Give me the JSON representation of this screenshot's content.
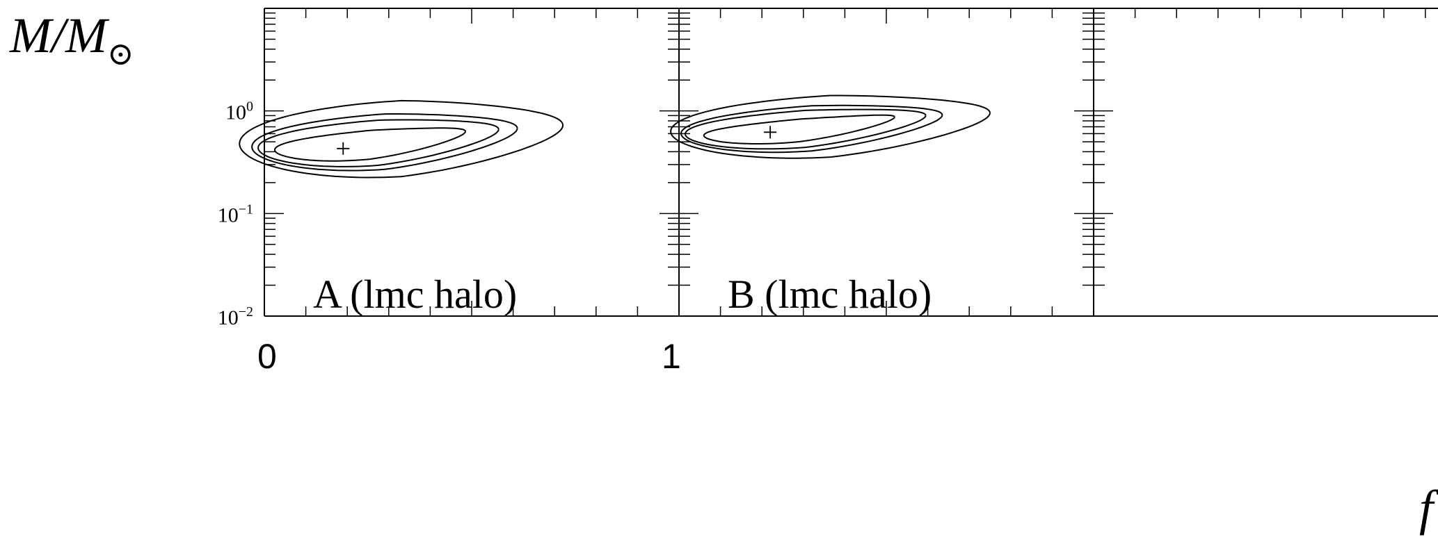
{
  "y_axis_title": {
    "main": "M/M",
    "subscript_symbol": "⊙"
  },
  "x_axis_title": "f",
  "outer_x_ticks": [
    "0",
    "1"
  ],
  "chart_data": {
    "type": "contour",
    "y_scale": "log",
    "ylim": [
      0.01,
      10
    ],
    "y_tick_labels": [
      {
        "value": 1,
        "base": "10",
        "exp": "0"
      },
      {
        "value": 0.1,
        "base": "10",
        "exp": "−1"
      },
      {
        "value": 0.01,
        "base": "10",
        "exp": "−2"
      }
    ],
    "panels": [
      {
        "label": "A (lmc halo)",
        "xlim": [
          0,
          1
        ],
        "best_fit": {
          "f": 0.19,
          "m": 0.43
        },
        "contours": [
          {
            "center_f": 0.255,
            "center_logm": -0.33,
            "a": 0.23,
            "b": 0.14,
            "tilt": 0.09
          },
          {
            "center_f": 0.275,
            "center_logm": -0.31,
            "a": 0.29,
            "b": 0.22,
            "tilt": 0.09
          },
          {
            "center_f": 0.29,
            "center_logm": -0.3,
            "a": 0.32,
            "b": 0.27,
            "tilt": 0.09
          },
          {
            "center_f": 0.33,
            "center_logm": -0.27,
            "a": 0.39,
            "b": 0.37,
            "tilt": 0.09
          }
        ]
      },
      {
        "label": "B (lmc halo)",
        "xlim": [
          1,
          2
        ],
        "best_fit": {
          "f": 1.22,
          "m": 0.62
        },
        "contours": [
          {
            "center_f": 1.29,
            "center_logm": -0.19,
            "a": 0.23,
            "b": 0.11,
            "tilt": 0.09
          },
          {
            "center_f": 1.305,
            "center_logm": -0.175,
            "a": 0.29,
            "b": 0.18,
            "tilt": 0.09
          },
          {
            "center_f": 1.32,
            "center_logm": -0.17,
            "a": 0.315,
            "b": 0.22,
            "tilt": 0.09
          },
          {
            "center_f": 1.365,
            "center_logm": -0.15,
            "a": 0.385,
            "b": 0.3,
            "tilt": 0.09
          }
        ]
      }
    ]
  }
}
